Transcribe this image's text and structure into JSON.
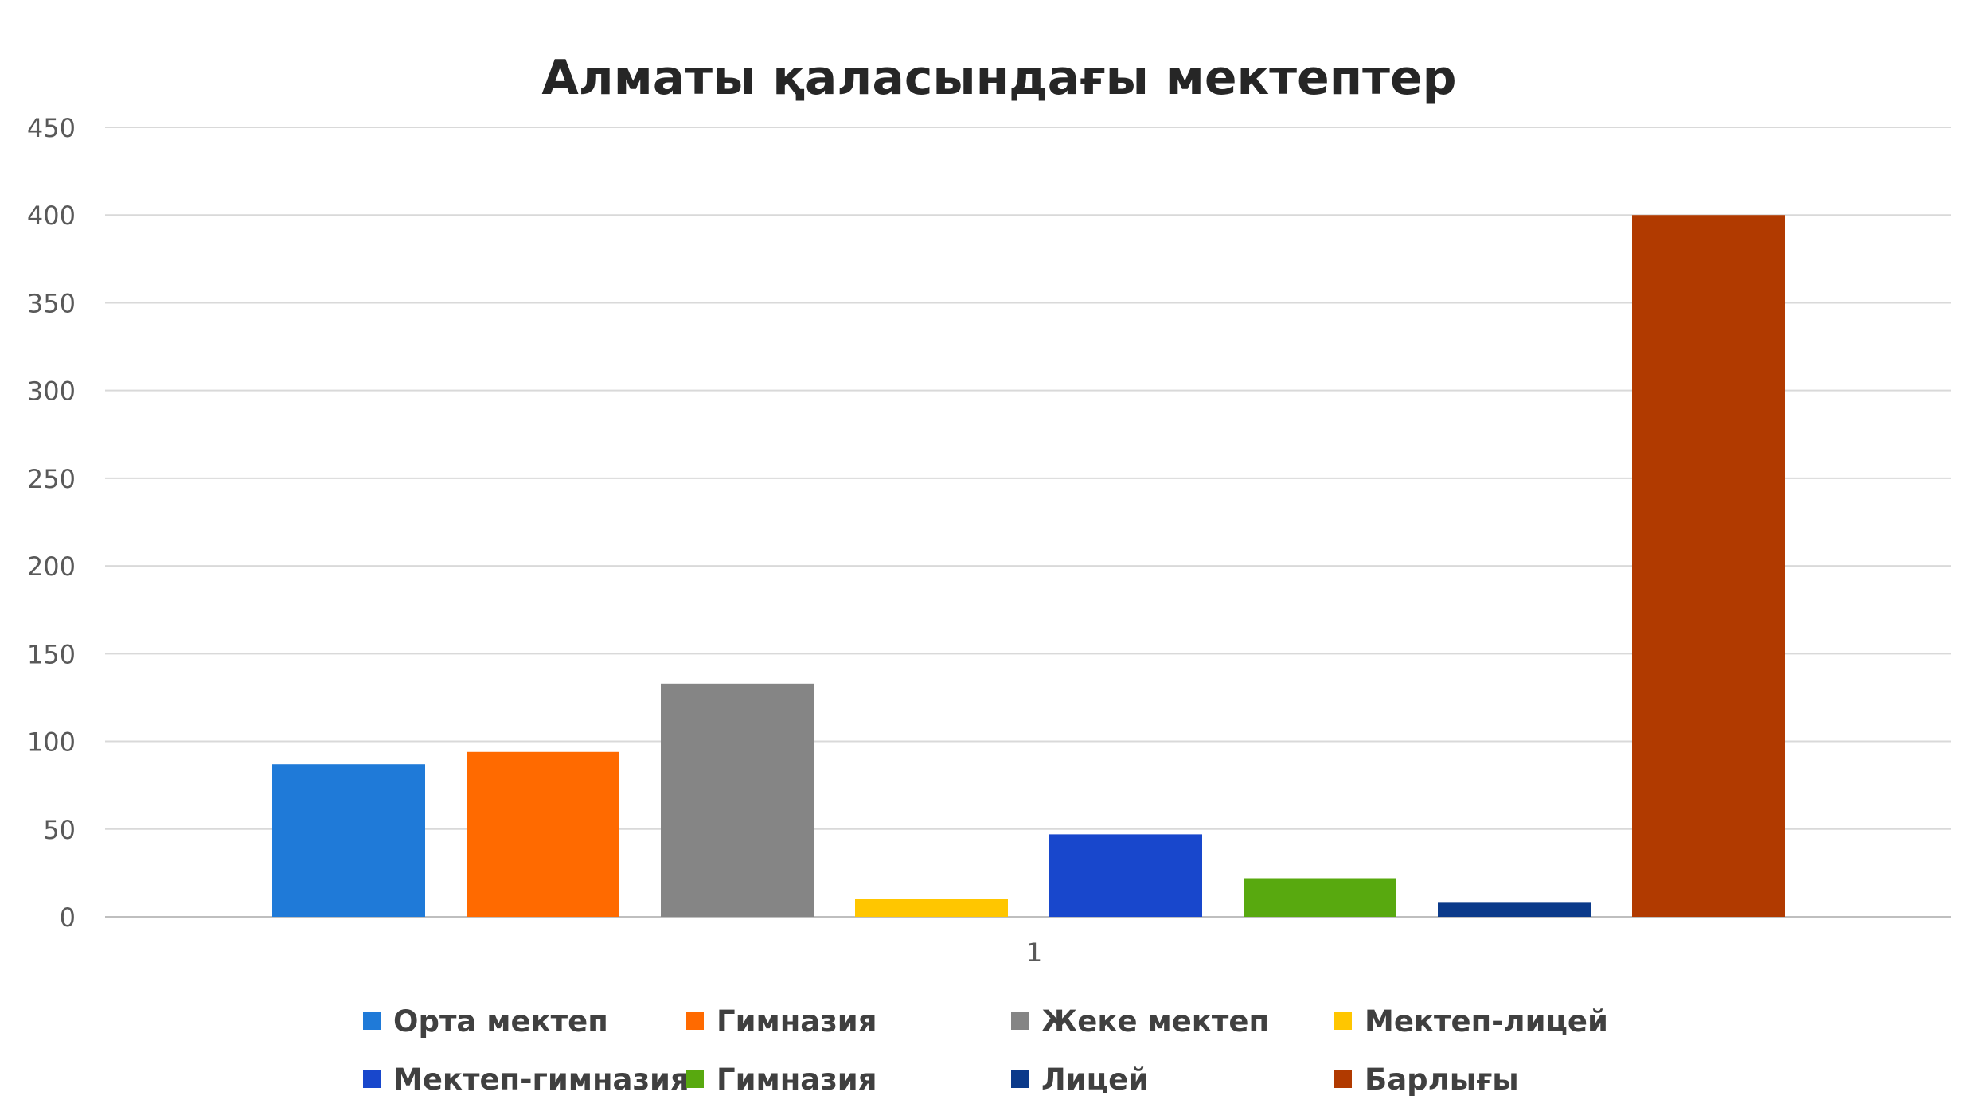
{
  "chart_data": {
    "type": "bar",
    "title": "Алматы қаласындағы мектептер",
    "categories": [
      "1"
    ],
    "series": [
      {
        "name": "Орта мектеп",
        "values": [
          87
        ],
        "color": "#1f7ad8"
      },
      {
        "name": "Гимназия",
        "values": [
          94
        ],
        "color": "#ff6a00"
      },
      {
        "name": "Жеке мектеп",
        "values": [
          133
        ],
        "color": "#858585"
      },
      {
        "name": "Мектеп-лицей",
        "values": [
          10
        ],
        "color": "#ffc600"
      },
      {
        "name": "Мектеп-гимназия",
        "values": [
          47
        ],
        "color": "#1847cc"
      },
      {
        "name": "Гимназия",
        "values": [
          22
        ],
        "color": "#58a90f"
      },
      {
        "name": "Лицей",
        "values": [
          8
        ],
        "color": "#0b3a8a"
      },
      {
        "name": "Барлығы",
        "values": [
          400
        ],
        "color": "#b13a00"
      }
    ],
    "yticks": [
      "0",
      "50",
      "100",
      "150",
      "200",
      "250",
      "300",
      "350",
      "400",
      "450"
    ],
    "ylim": [
      0,
      450
    ],
    "xlabel": "",
    "ylabel": "",
    "grid": true,
    "legend_position": "bottom"
  }
}
